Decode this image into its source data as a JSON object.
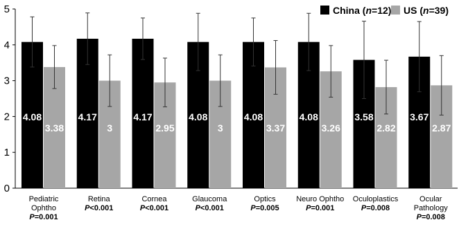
{
  "chart_data": {
    "type": "bar",
    "categories": [
      [
        "Pediatric",
        "Ophtho"
      ],
      [
        "Retina"
      ],
      [
        "Cornea"
      ],
      [
        "Glaucoma"
      ],
      [
        "Optics"
      ],
      [
        "Neuro Ophtho"
      ],
      [
        "Oculoplastics"
      ],
      [
        "Ocular",
        "Pathology"
      ]
    ],
    "p_values": [
      "=0.001",
      "<0.001",
      "<0.001",
      "<0.001",
      "=0.005",
      "=0.001",
      "=0.008",
      "=0.008"
    ],
    "p_symbol": "P",
    "series": [
      {
        "name": "China",
        "n_label": "n",
        "n_value": "=12",
        "color": "#000000",
        "values": [
          4.08,
          4.17,
          4.17,
          4.08,
          4.08,
          4.08,
          3.58,
          3.67
        ],
        "labels": [
          "4.08",
          "4.17",
          "4.17",
          "4.08",
          "4.08",
          "4.08",
          "3.58",
          "3.67"
        ],
        "error": [
          0.7,
          0.72,
          0.58,
          0.8,
          0.67,
          0.8,
          1.08,
          0.98
        ]
      },
      {
        "name": "US",
        "n_label": "n",
        "n_value": "=39",
        "color": "#a6a6a6",
        "values": [
          3.38,
          3.0,
          2.95,
          3.0,
          3.37,
          3.26,
          2.82,
          2.87
        ],
        "labels": [
          "3.38",
          "3",
          "2.95",
          "3",
          "3.37",
          "3.26",
          "2.82",
          "2.87"
        ],
        "error": [
          0.6,
          0.72,
          0.68,
          0.72,
          0.75,
          0.72,
          0.75,
          0.83
        ]
      }
    ],
    "yticks": [
      "0",
      "1",
      "2",
      "3",
      "4",
      "5"
    ],
    "ylim": [
      0,
      5
    ],
    "legend_position": "top-right",
    "grid": false
  }
}
